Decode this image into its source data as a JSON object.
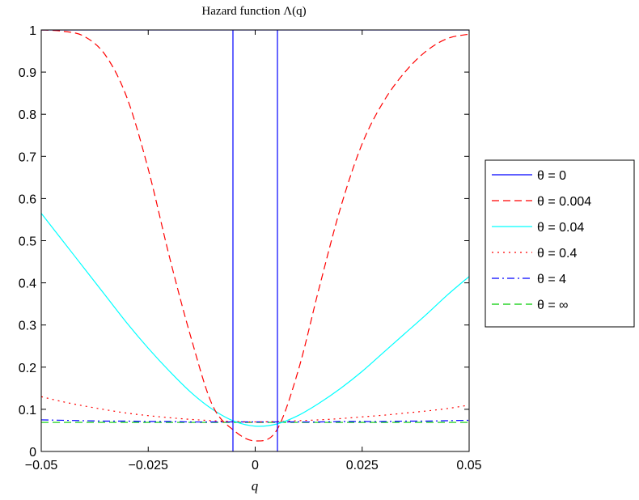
{
  "chart_data": {
    "type": "line",
    "title": "Hazard function Λ(q)",
    "xlabel": "q",
    "ylabel": "",
    "xlim": [
      -0.05,
      0.05
    ],
    "ylim": [
      0,
      1
    ],
    "xticks": [
      -0.05,
      -0.025,
      0,
      0.025,
      0.05
    ],
    "xtick_labels": [
      "−0.05",
      "−0.025",
      "0",
      "0.025",
      "0.05"
    ],
    "yticks": [
      0,
      0.1,
      0.2,
      0.3,
      0.4,
      0.5,
      0.6,
      0.7,
      0.8,
      0.9,
      1
    ],
    "ytick_labels": [
      "0",
      "0.1",
      "0.2",
      "0.3",
      "0.4",
      "0.5",
      "0.6",
      "0.7",
      "0.8",
      "0.9",
      "1"
    ],
    "grid": false,
    "legend_position": "outside-right",
    "x": [
      -0.05,
      -0.045,
      -0.04,
      -0.035,
      -0.03,
      -0.025,
      -0.02,
      -0.015,
      -0.01,
      -0.005,
      0,
      0.005,
      0.01,
      0.015,
      0.02,
      0.025,
      0.03,
      0.035,
      0.04,
      0.045,
      0.05
    ],
    "series": [
      {
        "name": "θ = 0",
        "color": "#0000ff",
        "dash": "solid",
        "points": [
          [
            -0.05,
            1
          ],
          [
            -0.0052,
            1
          ],
          [
            -0.0052,
            0
          ],
          [
            -0.0052,
            1
          ],
          [
            0.0052,
            1
          ],
          [
            0.0052,
            0
          ],
          [
            0.0052,
            1
          ],
          [
            0.05,
            1
          ]
        ]
      },
      {
        "name": "θ = 0.004",
        "color": "#ff0000",
        "dash": "dashed",
        "values": [
          1.0,
          0.997,
          0.985,
          0.94,
          0.84,
          0.67,
          0.46,
          0.27,
          0.11,
          0.05,
          0.025,
          0.05,
          0.19,
          0.39,
          0.58,
          0.73,
          0.83,
          0.9,
          0.95,
          0.98,
          0.99
        ]
      },
      {
        "name": "θ = 0.04",
        "color": "#00ffff",
        "dash": "solid",
        "values": [
          0.565,
          0.5,
          0.435,
          0.37,
          0.305,
          0.245,
          0.19,
          0.14,
          0.1,
          0.072,
          0.06,
          0.065,
          0.085,
          0.115,
          0.15,
          0.19,
          0.235,
          0.28,
          0.325,
          0.372,
          0.415
        ]
      },
      {
        "name": "θ = 0.4",
        "color": "#ff0000",
        "dash": "dotted",
        "values": [
          0.13,
          0.118,
          0.108,
          0.099,
          0.091,
          0.085,
          0.08,
          0.076,
          0.073,
          0.071,
          0.07,
          0.071,
          0.073,
          0.075,
          0.078,
          0.082,
          0.086,
          0.091,
          0.096,
          0.102,
          0.11
        ]
      },
      {
        "name": "θ = 4",
        "color": "#0000ff",
        "dash": "dashdot",
        "values": [
          0.075,
          0.074,
          0.073,
          0.072,
          0.072,
          0.071,
          0.071,
          0.07,
          0.07,
          0.07,
          0.07,
          0.07,
          0.07,
          0.07,
          0.071,
          0.071,
          0.071,
          0.072,
          0.072,
          0.073,
          0.074
        ]
      },
      {
        "name": "θ = ∞",
        "color": "#00cc00",
        "dash": "dashed",
        "values": [
          0.069,
          0.069,
          0.069,
          0.069,
          0.069,
          0.069,
          0.069,
          0.069,
          0.069,
          0.069,
          0.069,
          0.069,
          0.069,
          0.069,
          0.069,
          0.069,
          0.069,
          0.069,
          0.069,
          0.069,
          0.069
        ]
      }
    ]
  }
}
